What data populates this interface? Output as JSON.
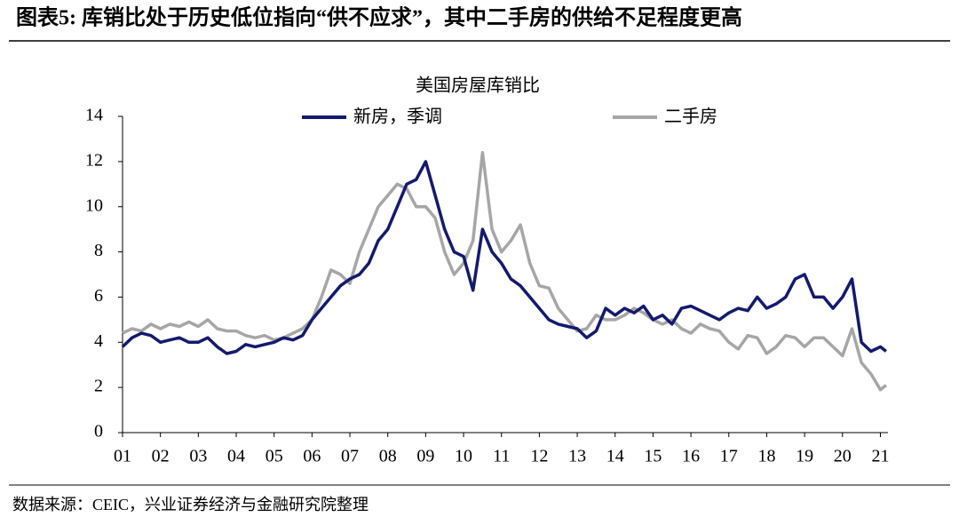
{
  "header": {
    "title": "图表5: 库销比处于历史低位指向“供不应求”，其中二手房的供给不足程度更高"
  },
  "chart_data": {
    "type": "line",
    "title": "美国房屋库销比",
    "x": [
      2001,
      2001.25,
      2001.5,
      2001.75,
      2002,
      2002.25,
      2002.5,
      2002.75,
      2003,
      2003.25,
      2003.5,
      2003.75,
      2004,
      2004.25,
      2004.5,
      2004.75,
      2005,
      2005.25,
      2005.5,
      2005.75,
      2006,
      2006.25,
      2006.5,
      2006.75,
      2007,
      2007.25,
      2007.5,
      2007.75,
      2008,
      2008.25,
      2008.5,
      2008.75,
      2009,
      2009.25,
      2009.5,
      2009.75,
      2010,
      2010.25,
      2010.5,
      2010.75,
      2011,
      2011.25,
      2011.5,
      2011.75,
      2012,
      2012.25,
      2012.5,
      2012.75,
      2013,
      2013.25,
      2013.5,
      2013.75,
      2014,
      2014.25,
      2014.5,
      2014.75,
      2015,
      2015.25,
      2015.5,
      2015.75,
      2016,
      2016.25,
      2016.5,
      2016.75,
      2017,
      2017.25,
      2017.5,
      2017.75,
      2018,
      2018.25,
      2018.5,
      2018.75,
      2019,
      2019.25,
      2019.5,
      2019.75,
      2020,
      2020.25,
      2020.5,
      2020.75,
      2021,
      2021.15
    ],
    "series": [
      {
        "name": "新房，季调",
        "color": "#141a6e",
        "values": [
          3.8,
          4.2,
          4.4,
          4.3,
          4.0,
          4.1,
          4.2,
          4.0,
          4.0,
          4.2,
          3.8,
          3.5,
          3.6,
          3.9,
          3.8,
          3.9,
          4.0,
          4.2,
          4.1,
          4.3,
          5.0,
          5.5,
          6.0,
          6.5,
          6.8,
          7.0,
          7.5,
          8.5,
          9.0,
          10.0,
          11.0,
          11.2,
          12.0,
          10.5,
          9.0,
          8.0,
          7.8,
          6.3,
          9.0,
          8.0,
          7.5,
          6.8,
          6.5,
          6.0,
          5.5,
          5.0,
          4.8,
          4.7,
          4.6,
          4.2,
          4.5,
          5.5,
          5.2,
          5.5,
          5.3,
          5.6,
          5.0,
          5.2,
          4.8,
          5.5,
          5.6,
          5.4,
          5.2,
          5.0,
          5.3,
          5.5,
          5.4,
          6.0,
          5.5,
          5.7,
          6.0,
          6.8,
          7.0,
          6.0,
          6.0,
          5.5,
          6.0,
          6.8,
          4.0,
          3.6,
          3.8,
          3.6
        ]
      },
      {
        "name": "二手房",
        "color": "#a6a6a6",
        "values": [
          4.4,
          4.6,
          4.5,
          4.8,
          4.6,
          4.8,
          4.7,
          4.9,
          4.7,
          5.0,
          4.6,
          4.5,
          4.5,
          4.3,
          4.2,
          4.3,
          4.1,
          4.2,
          4.4,
          4.6,
          5.0,
          6.0,
          7.2,
          7.0,
          6.6,
          8.0,
          9.0,
          10.0,
          10.5,
          11.0,
          10.8,
          10.0,
          10.0,
          9.5,
          8.0,
          7.0,
          7.5,
          8.5,
          12.4,
          9.0,
          8.0,
          8.5,
          9.2,
          7.5,
          6.5,
          6.4,
          5.5,
          5.0,
          4.5,
          4.6,
          5.2,
          5.0,
          5.0,
          5.2,
          5.5,
          5.3,
          5.0,
          4.8,
          5.0,
          4.6,
          4.4,
          4.8,
          4.6,
          4.5,
          4.0,
          3.7,
          4.3,
          4.2,
          3.5,
          3.8,
          4.3,
          4.2,
          3.8,
          4.2,
          4.2,
          3.8,
          3.4,
          4.6,
          3.1,
          2.6,
          1.9,
          2.1
        ]
      }
    ],
    "xlim": [
      2001,
      2021.2
    ],
    "xticks": [
      {
        "value": 2001,
        "label": "01"
      },
      {
        "value": 2002,
        "label": "02"
      },
      {
        "value": 2003,
        "label": "03"
      },
      {
        "value": 2004,
        "label": "04"
      },
      {
        "value": 2005,
        "label": "05"
      },
      {
        "value": 2006,
        "label": "06"
      },
      {
        "value": 2007,
        "label": "07"
      },
      {
        "value": 2008,
        "label": "08"
      },
      {
        "value": 2009,
        "label": "09"
      },
      {
        "value": 2010,
        "label": "10"
      },
      {
        "value": 2011,
        "label": "11"
      },
      {
        "value": 2012,
        "label": "12"
      },
      {
        "value": 2013,
        "label": "13"
      },
      {
        "value": 2014,
        "label": "14"
      },
      {
        "value": 2015,
        "label": "15"
      },
      {
        "value": 2016,
        "label": "16"
      },
      {
        "value": 2017,
        "label": "17"
      },
      {
        "value": 2018,
        "label": "18"
      },
      {
        "value": 2019,
        "label": "19"
      },
      {
        "value": 2020,
        "label": "20"
      },
      {
        "value": 2021,
        "label": "21"
      }
    ],
    "ylim": [
      0,
      14
    ],
    "yticks": [
      0,
      2,
      4,
      6,
      8,
      10,
      12,
      14
    ],
    "grid": false
  },
  "footer": {
    "source": "数据来源：CEIC，兴业证券经济与金融研究院整理"
  }
}
